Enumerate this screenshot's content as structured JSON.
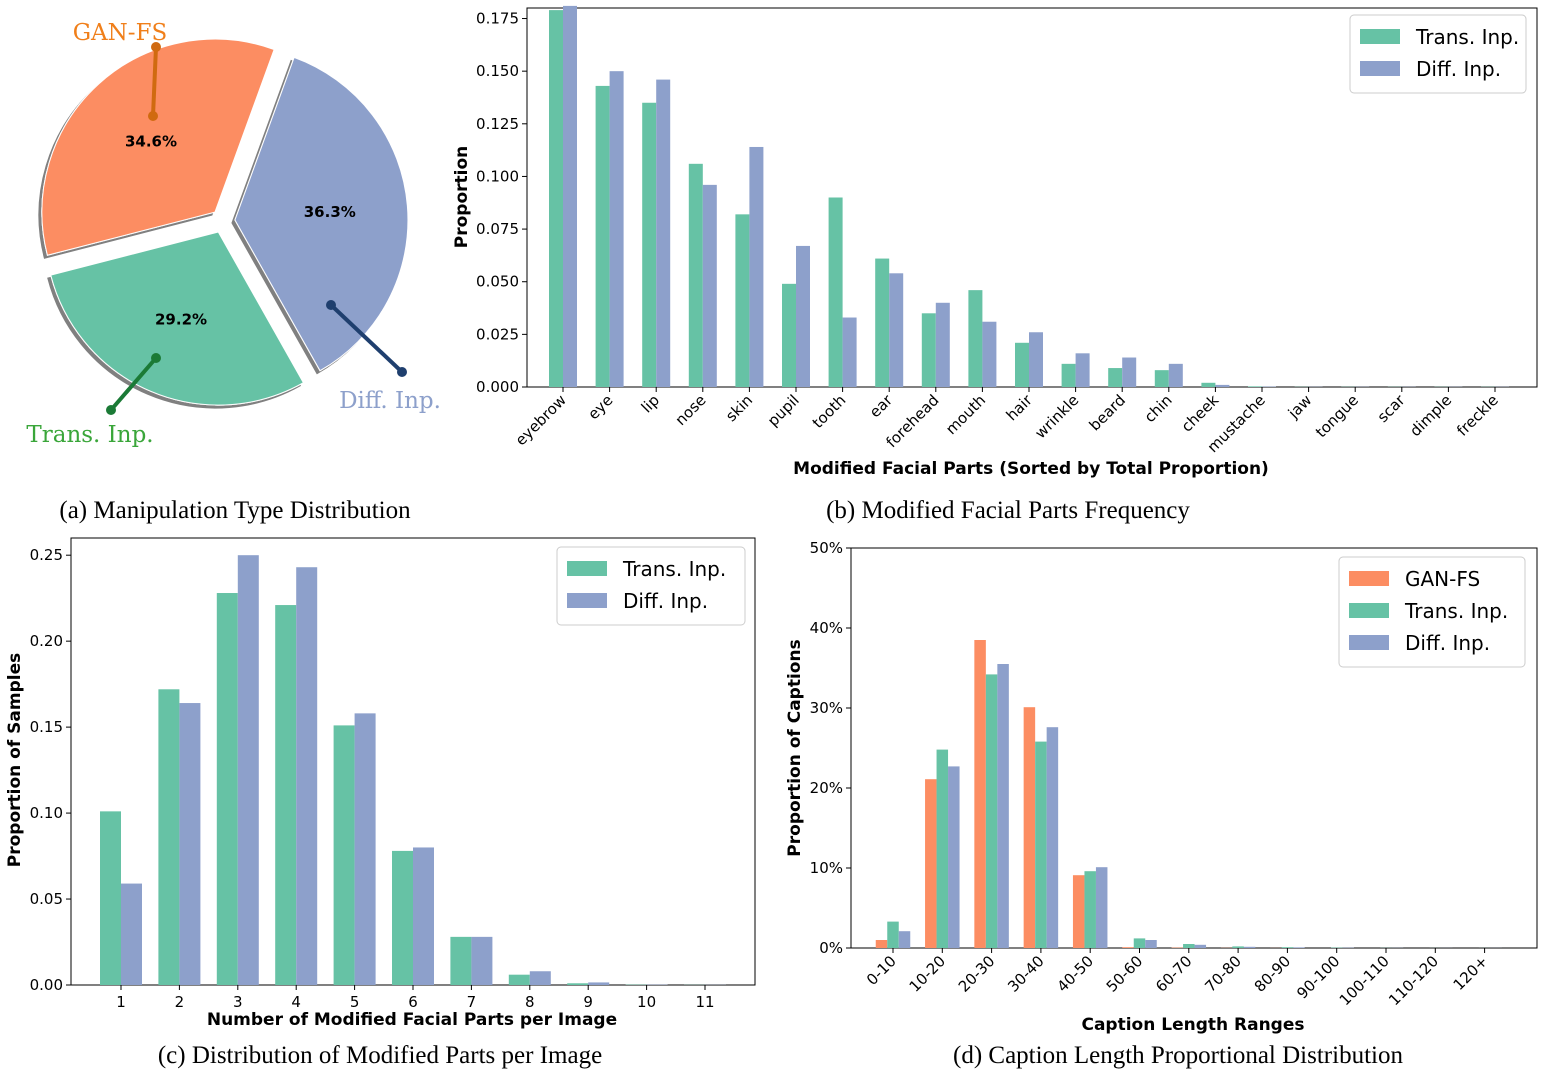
{
  "colors": {
    "gan": "#fc8d62",
    "trans": "#66c2a5",
    "diff": "#8da0cb",
    "gan_label": "#f07f1a",
    "trans_label": "#3aa63a",
    "diff_label": "#8da0cb",
    "gan_line": "#d06a10",
    "trans_line": "#1b7a36",
    "diff_line": "#1f3f6e"
  },
  "chart_data": [
    {
      "id": "a",
      "type": "pie",
      "caption": "(a) Manipulation Type Distribution",
      "slices": [
        {
          "key": "gan",
          "label": "GAN-FS",
          "value": 34.6,
          "pct_text": "34.6%"
        },
        {
          "key": "diff",
          "label": "Diff. Inp.",
          "value": 36.3,
          "pct_text": "36.3%"
        },
        {
          "key": "trans",
          "label": "Trans. Inp.",
          "value": 29.2,
          "pct_text": "29.2%"
        }
      ]
    },
    {
      "id": "b",
      "type": "bar",
      "caption": "(b) Modified Facial Parts Frequency",
      "xlabel": "Modified Facial Parts (Sorted by Total Proportion)",
      "ylabel": "Proportion",
      "ylim": [
        0,
        0.18
      ],
      "yticks": [
        0.0,
        0.025,
        0.05,
        0.075,
        0.1,
        0.125,
        0.15,
        0.175
      ],
      "ytick_labels": [
        "0.000",
        "0.025",
        "0.050",
        "0.075",
        "0.100",
        "0.125",
        "0.150",
        "0.175"
      ],
      "categories": [
        "eyebrow",
        "eye",
        "lip",
        "nose",
        "skin",
        "pupil",
        "tooth",
        "ear",
        "forehead",
        "mouth",
        "hair",
        "wrinkle",
        "beard",
        "chin",
        "cheek",
        "mustache",
        "jaw",
        "tongue",
        "scar",
        "dimple",
        "freckle"
      ],
      "series": [
        {
          "key": "trans",
          "name": "Trans. Inp.",
          "values": [
            0.179,
            0.143,
            0.135,
            0.106,
            0.082,
            0.049,
            0.09,
            0.061,
            0.035,
            0.046,
            0.021,
            0.011,
            0.009,
            0.008,
            0.002,
            0.0003,
            0.0001,
            0.0001,
            0.0001,
            0.0001,
            0.0001
          ]
        },
        {
          "key": "diff",
          "name": "Diff. Inp.",
          "values": [
            0.181,
            0.15,
            0.146,
            0.096,
            0.114,
            0.067,
            0.033,
            0.054,
            0.04,
            0.031,
            0.026,
            0.016,
            0.014,
            0.011,
            0.001,
            0.0002,
            0.0001,
            0.0001,
            0.0001,
            0.0001,
            0.0001
          ]
        }
      ],
      "legend": "top-right"
    },
    {
      "id": "c",
      "type": "bar",
      "caption": "(c) Distribution of Modified Parts per Image",
      "xlabel": "Number of Modified Facial Parts per Image",
      "ylabel": "Proportion of Samples",
      "ylim": [
        0,
        0.26
      ],
      "yticks": [
        0.0,
        0.05,
        0.1,
        0.15,
        0.2,
        0.25
      ],
      "ytick_labels": [
        "0.00",
        "0.05",
        "0.10",
        "0.15",
        "0.20",
        "0.25"
      ],
      "categories": [
        "1",
        "2",
        "3",
        "4",
        "5",
        "6",
        "7",
        "8",
        "9",
        "10",
        "11"
      ],
      "series": [
        {
          "key": "trans",
          "name": "Trans. Inp.",
          "values": [
            0.101,
            0.172,
            0.228,
            0.221,
            0.151,
            0.078,
            0.028,
            0.006,
            0.001,
            0.0002,
            0.0001
          ]
        },
        {
          "key": "diff",
          "name": "Diff. Inp.",
          "values": [
            0.059,
            0.164,
            0.25,
            0.243,
            0.158,
            0.08,
            0.028,
            0.008,
            0.0015,
            0.0002,
            0.0001
          ]
        }
      ],
      "legend": "top-right"
    },
    {
      "id": "d",
      "type": "bar",
      "caption": "(d) Caption Length Proportional Distribution",
      "xlabel": "Caption Length Ranges",
      "ylabel": "Proportion of Captions",
      "ylim": [
        0,
        50
      ],
      "yticks": [
        0,
        10,
        20,
        30,
        40,
        50
      ],
      "ytick_labels": [
        "0%",
        "10%",
        "20%",
        "30%",
        "40%",
        "50%"
      ],
      "categories": [
        "0-10",
        "10-20",
        "20-30",
        "30-40",
        "40-50",
        "50-60",
        "60-70",
        "70-80",
        "80-90",
        "90-100",
        "100-110",
        "110-120",
        "120+"
      ],
      "series": [
        {
          "key": "gan",
          "name": "GAN-FS",
          "values": [
            1.0,
            21.1,
            38.5,
            30.1,
            9.1,
            0.1,
            0.05,
            0.02,
            0.01,
            0.0,
            0.0,
            0.0,
            0.0
          ]
        },
        {
          "key": "trans",
          "name": "Trans. Inp.",
          "values": [
            3.3,
            24.8,
            34.2,
            25.8,
            9.6,
            1.2,
            0.5,
            0.2,
            0.1,
            0.05,
            0.02,
            0.01,
            0.01
          ]
        },
        {
          "key": "diff",
          "name": "Diff. Inp.",
          "values": [
            2.1,
            22.7,
            35.5,
            27.6,
            10.1,
            1.0,
            0.4,
            0.15,
            0.08,
            0.04,
            0.02,
            0.01,
            0.01
          ]
        }
      ],
      "legend": "top-right"
    }
  ]
}
